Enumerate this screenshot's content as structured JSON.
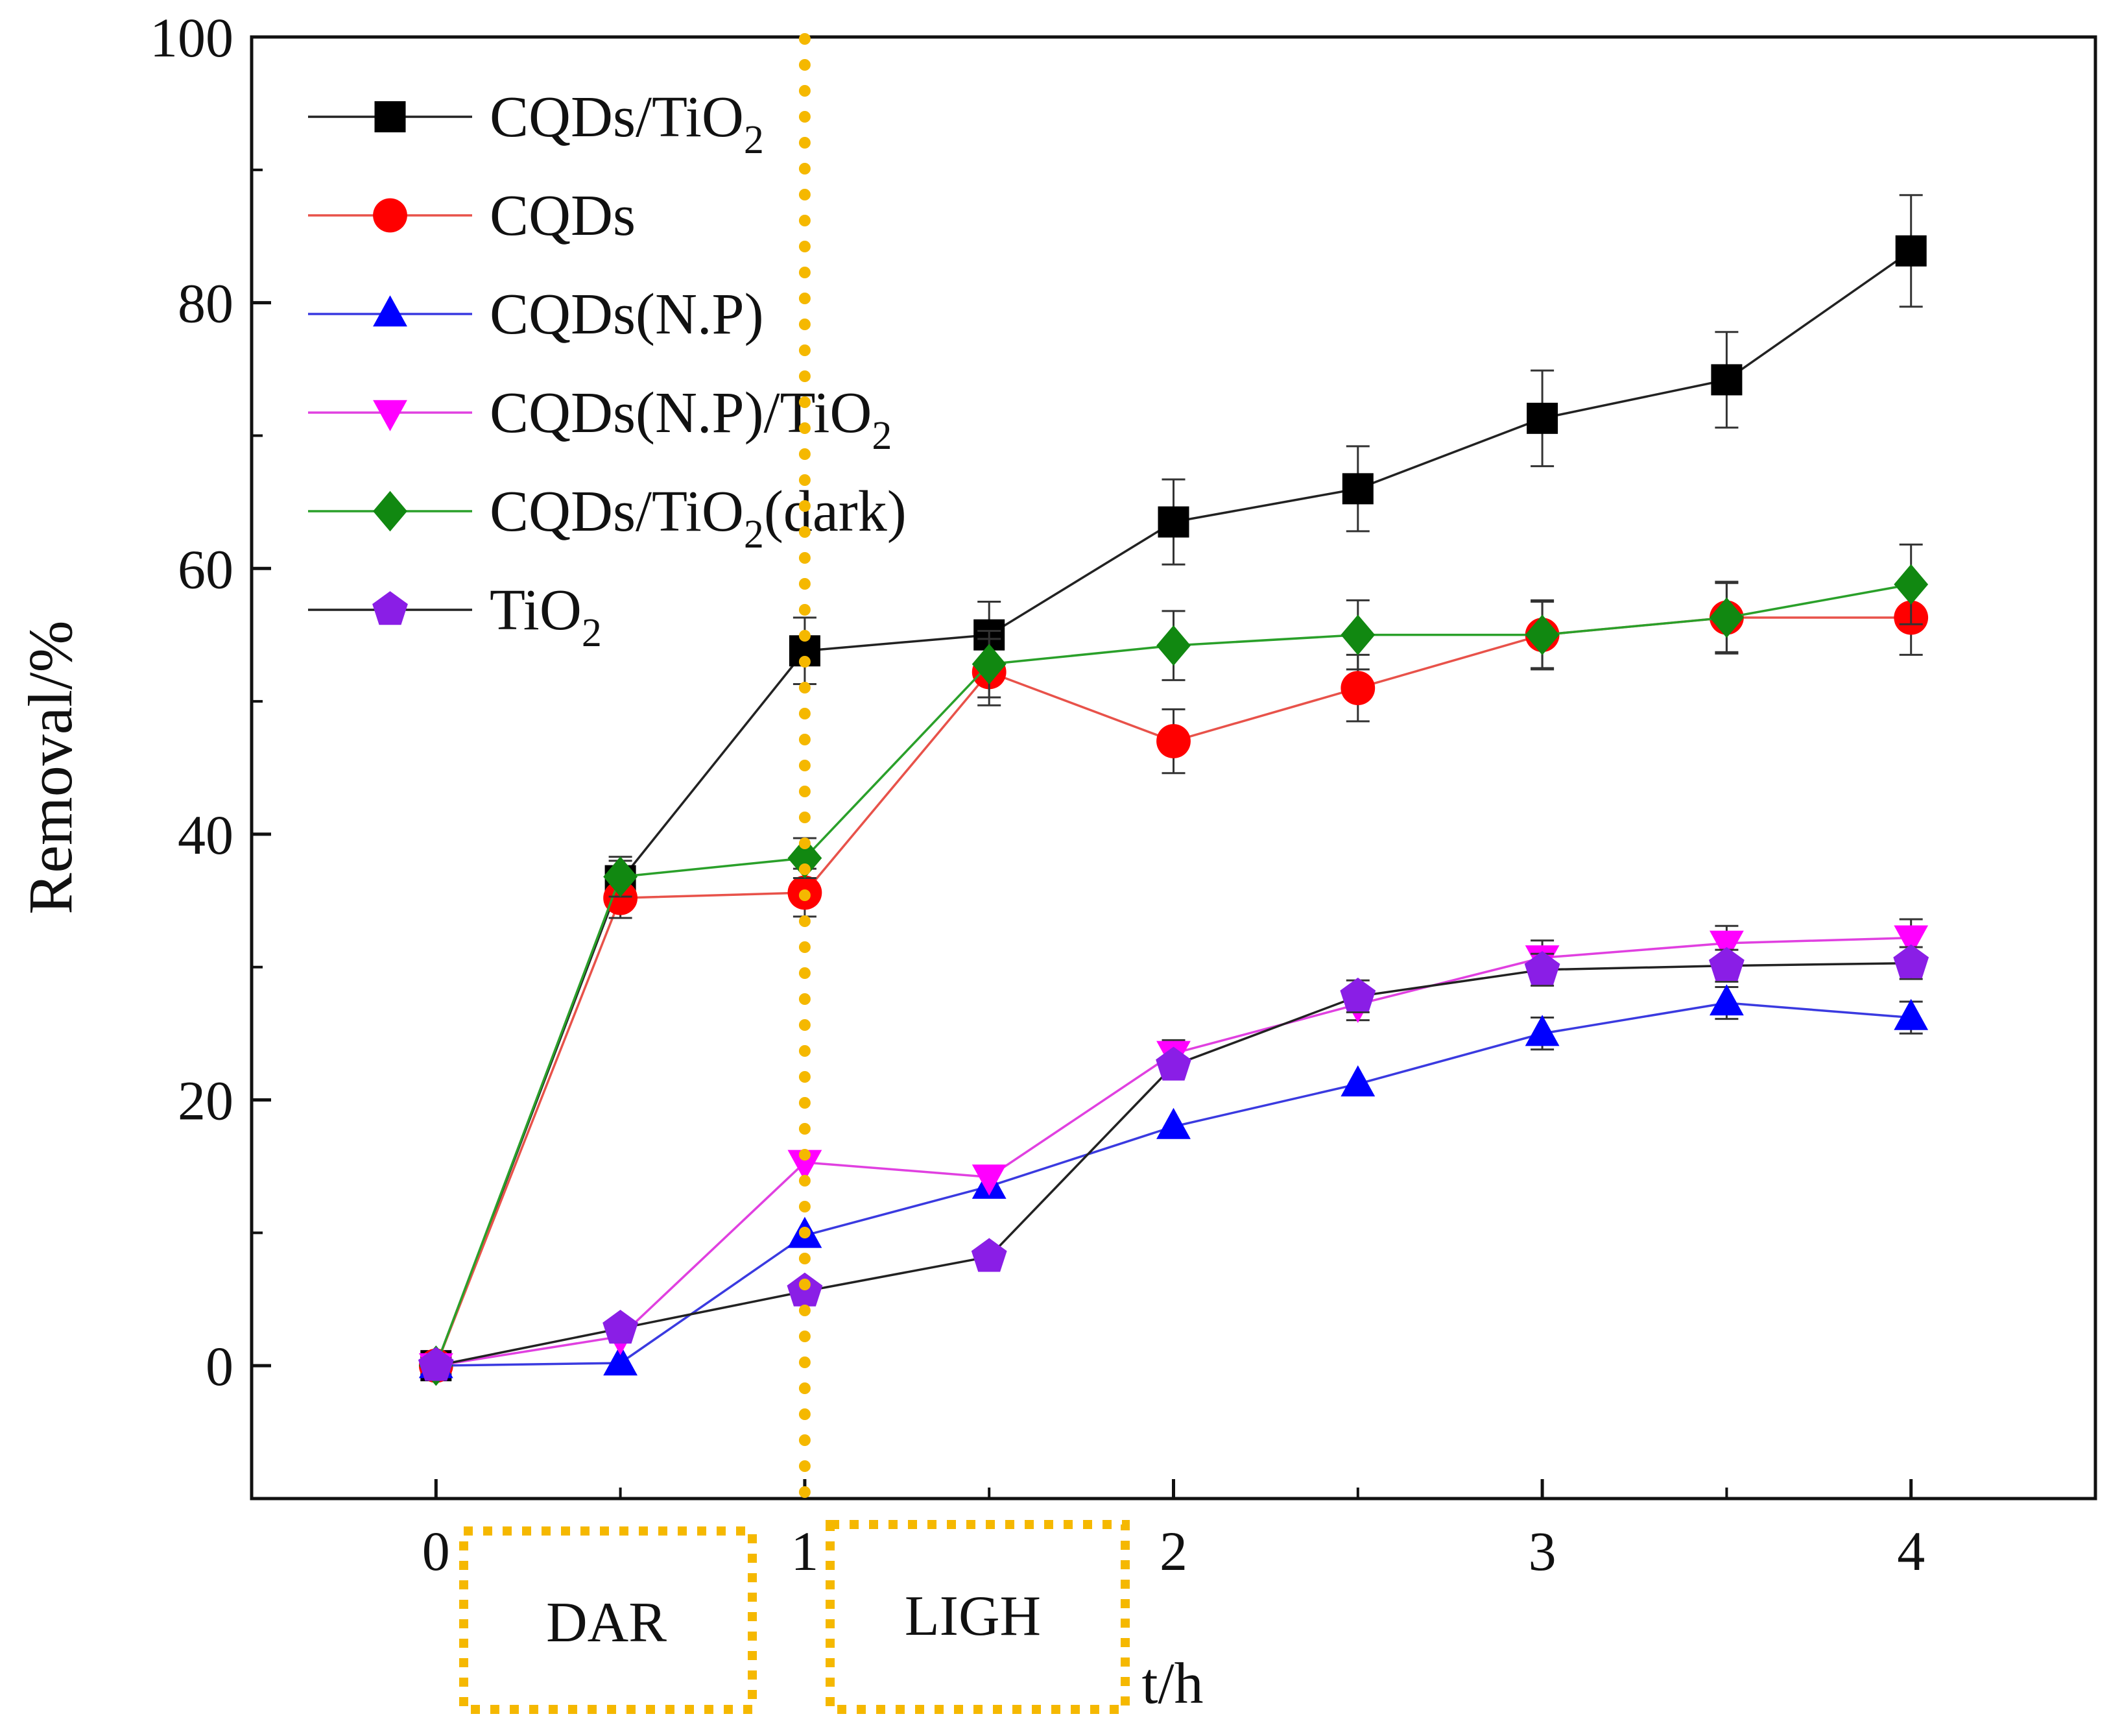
{
  "chart_data": {
    "type": "line",
    "xlabel": "t/h",
    "ylabel": "Removal/%",
    "xlim": [
      -0.5,
      4.5
    ],
    "ylim": [
      -10,
      100
    ],
    "x_ticks": [
      0,
      1,
      2,
      3,
      4
    ],
    "x_tick_labels": [
      "0",
      "1",
      "2",
      "3",
      "4"
    ],
    "y_ticks": [
      0,
      20,
      40,
      60,
      80,
      100
    ],
    "y_tick_labels": [
      "0",
      "20",
      "40",
      "60",
      "80",
      "100"
    ],
    "x": [
      0,
      0.5,
      1,
      1.5,
      2,
      2.5,
      3,
      3.5,
      4
    ],
    "series": [
      {
        "name": "CQDs/TiO",
        "subscript": "2",
        "suffix": "",
        "color": "#000000",
        "line_color": "#222222",
        "marker": "square",
        "values": [
          0,
          36.5,
          53.8,
          55.0,
          63.5,
          66.0,
          71.3,
          74.2,
          83.9
        ],
        "errors": [
          0,
          1.5,
          2.5,
          2.5,
          3.2,
          3.2,
          3.6,
          3.6,
          4.2
        ]
      },
      {
        "name": "CQDs",
        "subscript": "",
        "suffix": "",
        "color": "#ff0000",
        "line_color": "#e8524a",
        "marker": "circle",
        "values": [
          0,
          35.2,
          35.6,
          52.2,
          47.0,
          51.0,
          55.0,
          56.3,
          56.3
        ],
        "errors": [
          0,
          1.5,
          1.8,
          2.5,
          2.4,
          2.5,
          2.5,
          2.6,
          2.8
        ]
      },
      {
        "name": "CQDs(N.P)",
        "subscript": "",
        "suffix": "",
        "color": "#0000ff",
        "line_color": "#3a3ae0",
        "marker": "triangle-up",
        "values": [
          0,
          0.2,
          9.8,
          13.5,
          18.0,
          21.2,
          25.0,
          27.3,
          26.2
        ],
        "errors": [
          0,
          0,
          0,
          0,
          0,
          0,
          1.2,
          1.2,
          1.2
        ]
      },
      {
        "name": "CQDs(N.P)/TiO",
        "subscript": "2",
        "suffix": "",
        "color": "#ff00ff",
        "line_color": "#e040e0",
        "marker": "triangle-down",
        "values": [
          0,
          2.2,
          15.3,
          14.2,
          23.5,
          27.2,
          30.7,
          31.8,
          32.2
        ],
        "errors": [
          0,
          0,
          0,
          0,
          1.0,
          1.2,
          1.3,
          1.3,
          1.4
        ]
      },
      {
        "name": "CQDs/TiO",
        "subscript": "2",
        "suffix": "(dark)",
        "color": "#118811",
        "line_color": "#2aa02a",
        "marker": "diamond",
        "values": [
          0,
          36.8,
          38.2,
          52.8,
          54.2,
          55.0,
          55.0,
          56.3,
          58.8
        ],
        "errors": [
          0,
          1.5,
          1.5,
          2.5,
          2.6,
          2.6,
          2.6,
          2.7,
          3.0
        ]
      },
      {
        "name": "TiO",
        "subscript": "2",
        "suffix": "",
        "color": "#8a1ee6",
        "line_color": "#222222",
        "marker": "pentagon",
        "values": [
          0,
          2.8,
          5.6,
          8.2,
          22.6,
          27.8,
          29.8,
          30.1,
          30.3
        ],
        "errors": [
          0,
          0,
          0,
          0,
          0,
          1.2,
          1.2,
          1.2,
          1.2
        ]
      }
    ],
    "annotations": {
      "divider_x": 1,
      "boxes": [
        {
          "text": "DAR"
        },
        {
          "text": "LIGH"
        }
      ],
      "annotation_color": "#f5b800"
    },
    "legend_position": "top-left"
  }
}
